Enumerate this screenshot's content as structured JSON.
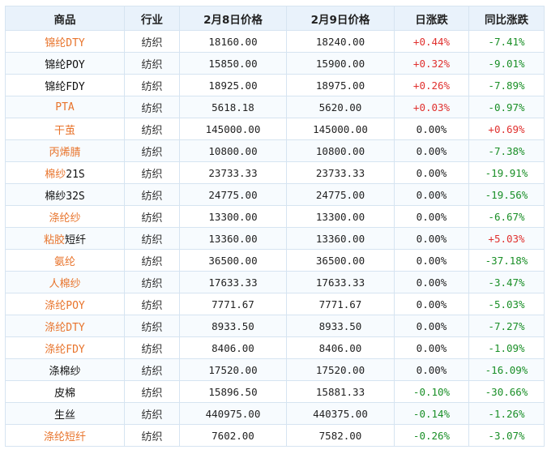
{
  "headers": [
    "商品",
    "行业",
    "2月8日价格",
    "2月9日价格",
    "日涨跌",
    "同比涨跌"
  ],
  "colors": {
    "header_bg": "#e9f2fb",
    "border": "#d6e4f1",
    "link_orange": "#e8742c",
    "up_red": "#e0312f",
    "down_green": "#1a8f27"
  },
  "rows": [
    {
      "name": [
        {
          "t": "锦纶DTY",
          "link": true
        }
      ],
      "industry": "纺织",
      "p8": "18160.00",
      "p9": "18240.00",
      "daily": "+0.44%",
      "daily_dir": "up",
      "yoy": "-7.41%",
      "yoy_dir": "down"
    },
    {
      "name": [
        {
          "t": "锦纶POY",
          "link": false
        }
      ],
      "industry": "纺织",
      "p8": "15850.00",
      "p9": "15900.00",
      "daily": "+0.32%",
      "daily_dir": "up",
      "yoy": "-9.01%",
      "yoy_dir": "down"
    },
    {
      "name": [
        {
          "t": "锦纶FDY",
          "link": false
        }
      ],
      "industry": "纺织",
      "p8": "18925.00",
      "p9": "18975.00",
      "daily": "+0.26%",
      "daily_dir": "up",
      "yoy": "-7.89%",
      "yoy_dir": "down"
    },
    {
      "name": [
        {
          "t": "PTA",
          "link": true
        }
      ],
      "industry": "纺织",
      "p8": "5618.18",
      "p9": "5620.00",
      "daily": "+0.03%",
      "daily_dir": "up",
      "yoy": "-0.97%",
      "yoy_dir": "down"
    },
    {
      "name": [
        {
          "t": "干茧",
          "link": true
        }
      ],
      "industry": "纺织",
      "p8": "145000.00",
      "p9": "145000.00",
      "daily": "0.00%",
      "daily_dir": "flat",
      "yoy": "+0.69%",
      "yoy_dir": "up"
    },
    {
      "name": [
        {
          "t": "丙烯腈",
          "link": true
        }
      ],
      "industry": "纺织",
      "p8": "10800.00",
      "p9": "10800.00",
      "daily": "0.00%",
      "daily_dir": "flat",
      "yoy": "-7.38%",
      "yoy_dir": "down"
    },
    {
      "name": [
        {
          "t": "棉纱",
          "link": true
        },
        {
          "t": "21S",
          "link": false
        }
      ],
      "industry": "纺织",
      "p8": "23733.33",
      "p9": "23733.33",
      "daily": "0.00%",
      "daily_dir": "flat",
      "yoy": "-19.91%",
      "yoy_dir": "down"
    },
    {
      "name": [
        {
          "t": "棉纱32S",
          "link": false
        }
      ],
      "industry": "纺织",
      "p8": "24775.00",
      "p9": "24775.00",
      "daily": "0.00%",
      "daily_dir": "flat",
      "yoy": "-19.56%",
      "yoy_dir": "down"
    },
    {
      "name": [
        {
          "t": "涤纶纱",
          "link": true
        }
      ],
      "industry": "纺织",
      "p8": "13300.00",
      "p9": "13300.00",
      "daily": "0.00%",
      "daily_dir": "flat",
      "yoy": "-6.67%",
      "yoy_dir": "down"
    },
    {
      "name": [
        {
          "t": "粘胶",
          "link": true
        },
        {
          "t": "短纤",
          "link": false
        }
      ],
      "industry": "纺织",
      "p8": "13360.00",
      "p9": "13360.00",
      "daily": "0.00%",
      "daily_dir": "flat",
      "yoy": "+5.03%",
      "yoy_dir": "up"
    },
    {
      "name": [
        {
          "t": "氨纶",
          "link": true
        }
      ],
      "industry": "纺织",
      "p8": "36500.00",
      "p9": "36500.00",
      "daily": "0.00%",
      "daily_dir": "flat",
      "yoy": "-37.18%",
      "yoy_dir": "down"
    },
    {
      "name": [
        {
          "t": "人棉纱",
          "link": true
        }
      ],
      "industry": "纺织",
      "p8": "17633.33",
      "p9": "17633.33",
      "daily": "0.00%",
      "daily_dir": "flat",
      "yoy": "-3.47%",
      "yoy_dir": "down"
    },
    {
      "name": [
        {
          "t": "涤纶POY",
          "link": true
        }
      ],
      "industry": "纺织",
      "p8": "7771.67",
      "p9": "7771.67",
      "daily": "0.00%",
      "daily_dir": "flat",
      "yoy": "-5.03%",
      "yoy_dir": "down"
    },
    {
      "name": [
        {
          "t": "涤纶DTY",
          "link": true
        }
      ],
      "industry": "纺织",
      "p8": "8933.50",
      "p9": "8933.50",
      "daily": "0.00%",
      "daily_dir": "flat",
      "yoy": "-7.27%",
      "yoy_dir": "down"
    },
    {
      "name": [
        {
          "t": "涤纶FDY",
          "link": true
        }
      ],
      "industry": "纺织",
      "p8": "8406.00",
      "p9": "8406.00",
      "daily": "0.00%",
      "daily_dir": "flat",
      "yoy": "-1.09%",
      "yoy_dir": "down"
    },
    {
      "name": [
        {
          "t": "涤棉纱",
          "link": false
        }
      ],
      "industry": "纺织",
      "p8": "17520.00",
      "p9": "17520.00",
      "daily": "0.00%",
      "daily_dir": "flat",
      "yoy": "-16.09%",
      "yoy_dir": "down"
    },
    {
      "name": [
        {
          "t": "皮棉",
          "link": false
        }
      ],
      "industry": "纺织",
      "p8": "15896.50",
      "p9": "15881.33",
      "daily": "-0.10%",
      "daily_dir": "down",
      "yoy": "-30.66%",
      "yoy_dir": "down"
    },
    {
      "name": [
        {
          "t": "生丝",
          "link": false
        }
      ],
      "industry": "纺织",
      "p8": "440975.00",
      "p9": "440375.00",
      "daily": "-0.14%",
      "daily_dir": "down",
      "yoy": "-1.26%",
      "yoy_dir": "down"
    },
    {
      "name": [
        {
          "t": "涤纶短纤",
          "link": true
        }
      ],
      "industry": "纺织",
      "p8": "7602.00",
      "p9": "7582.00",
      "daily": "-0.26%",
      "daily_dir": "down",
      "yoy": "-3.07%",
      "yoy_dir": "down"
    }
  ]
}
